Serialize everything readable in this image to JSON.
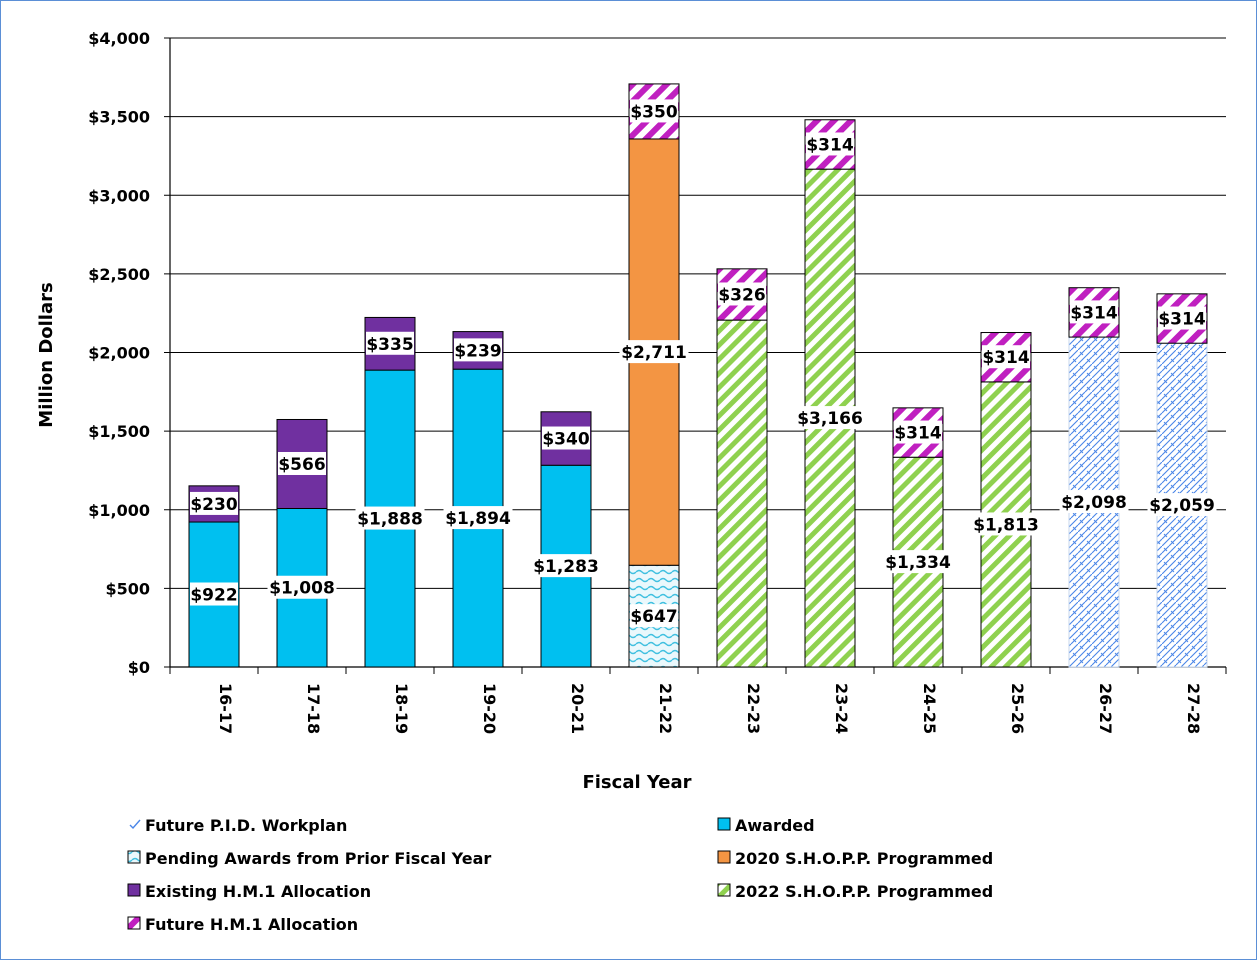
{
  "chart_data": {
    "type": "bar",
    "stacked": true,
    "title": "",
    "xlabel": "Fiscal Year",
    "ylabel": "Million Dollars",
    "ylim": [
      0,
      4000
    ],
    "yticks": [
      0,
      500,
      1000,
      1500,
      2000,
      2500,
      3000,
      3500,
      4000
    ],
    "ytick_labels": [
      "$0",
      "$500",
      "$1,000",
      "$1,500",
      "$2,000",
      "$2,500",
      "$3,000",
      "$3,500",
      "$4,000"
    ],
    "grid": true,
    "legend_position": "bottom",
    "categories": [
      "16-17",
      "17-18",
      "18-19",
      "19-20",
      "20-21",
      "21-22",
      "22-23",
      "23-24",
      "24-25",
      "25-26",
      "26-27",
      "27-28"
    ],
    "series": [
      {
        "name": "Awarded",
        "color": "#00c0f0",
        "pattern": "solid",
        "values": [
          922,
          1008,
          1888,
          1894,
          1283,
          null,
          null,
          null,
          null,
          null,
          null,
          null
        ],
        "labels": [
          "$922",
          "$1,008",
          "$1,888",
          "$1,894",
          "$1,283",
          "",
          "",
          "",
          "",
          "",
          "",
          ""
        ]
      },
      {
        "name": "Pending Awards from Prior Fiscal Year",
        "color": "#40c0e0",
        "pattern": "wave",
        "values": [
          null,
          null,
          null,
          null,
          null,
          647,
          null,
          null,
          null,
          null,
          null,
          null
        ],
        "labels": [
          "",
          "",
          "",
          "",
          "",
          "$647",
          "",
          "",
          "",
          "",
          "",
          ""
        ]
      },
      {
        "name": "2020 S.H.O.P.P. Programmed",
        "color": "#f39543",
        "pattern": "solid",
        "values": [
          null,
          null,
          null,
          null,
          null,
          2711,
          null,
          null,
          null,
          null,
          null,
          null
        ],
        "labels": [
          "",
          "",
          "",
          "",
          "",
          "$2,711",
          "",
          "",
          "",
          "",
          "",
          ""
        ]
      },
      {
        "name": "2022 S.H.O.P.P. Programmed",
        "color": "#8fd14f",
        "pattern": "diagonal",
        "values": [
          null,
          null,
          null,
          null,
          null,
          null,
          2206,
          3166,
          1334,
          1813,
          null,
          null
        ],
        "labels": [
          "",
          "",
          "",
          "",
          "",
          "",
          "",
          "$3,166",
          "$1,334",
          "$1,813",
          "",
          ""
        ]
      },
      {
        "name": "Future P.I.D. Workplan",
        "color": "#4a86e8",
        "pattern": "lattice",
        "values": [
          null,
          null,
          null,
          null,
          null,
          null,
          null,
          null,
          null,
          null,
          2098,
          2059
        ],
        "labels": [
          "",
          "",
          "",
          "",
          "",
          "",
          "",
          "",
          "",
          "",
          "$2,098",
          "$2,059"
        ]
      },
      {
        "name": "Existing H.M.1 Allocation",
        "color": "#7030a0",
        "pattern": "solid",
        "values": [
          230,
          566,
          335,
          239,
          340,
          null,
          null,
          null,
          null,
          null,
          null,
          null
        ],
        "labels": [
          "$230",
          "$566",
          "$335",
          "$239",
          "$340",
          "",
          "",
          "",
          "",
          "",
          "",
          ""
        ]
      },
      {
        "name": "Future H.M.1 Allocation",
        "color": "#c020c0",
        "pattern": "stripe",
        "values": [
          null,
          null,
          null,
          null,
          null,
          350,
          326,
          314,
          314,
          314,
          314,
          314
        ],
        "labels": [
          "",
          "",
          "",
          "",
          "",
          "$350",
          "$326",
          "$314",
          "$314",
          "$314",
          "$314",
          "$314"
        ]
      }
    ],
    "legend_order": [
      "Future P.I.D. Workplan",
      "Awarded",
      "Pending Awards from Prior Fiscal Year",
      "2020 S.H.O.P.P. Programmed",
      "Existing H.M.1 Allocation",
      "2022 S.H.O.P.P. Programmed",
      "Future H.M.1 Allocation"
    ]
  }
}
